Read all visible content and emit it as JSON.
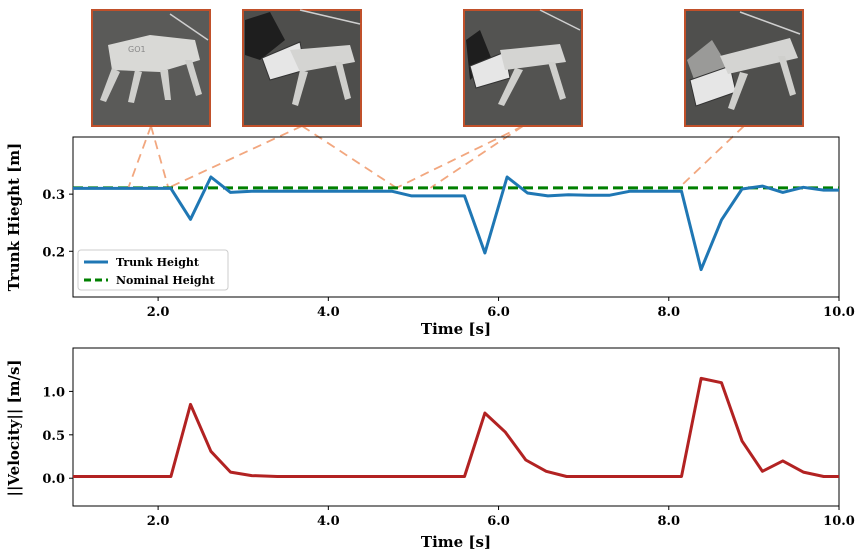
{
  "chart_data": [
    {
      "type": "line",
      "xlabel": "Time [s]",
      "ylabel": "Trunk Hieght [m]",
      "xlim": [
        1.0,
        10.0
      ],
      "ylim": [
        0.12,
        0.4
      ],
      "xticks": [
        "2.0",
        "4.0",
        "6.0",
        "8.0",
        "10.0"
      ],
      "yticks": [
        "0.2",
        "0.3"
      ],
      "legend_position": "lower-left",
      "series": [
        {
          "name": "Trunk Height",
          "color": "#1f77b4",
          "style": "solid",
          "x": [
            1.0,
            2.15,
            2.38,
            2.62,
            2.85,
            3.1,
            4.0,
            4.75,
            4.98,
            5.6,
            5.84,
            6.1,
            6.34,
            6.58,
            6.82,
            7.06,
            7.3,
            7.54,
            7.78,
            8.15,
            8.38,
            8.62,
            8.86,
            9.1,
            9.34,
            9.58,
            9.82,
            10.0
          ],
          "y": [
            0.31,
            0.31,
            0.256,
            0.33,
            0.303,
            0.305,
            0.305,
            0.305,
            0.297,
            0.297,
            0.197,
            0.33,
            0.302,
            0.297,
            0.299,
            0.298,
            0.298,
            0.305,
            0.305,
            0.305,
            0.168,
            0.255,
            0.309,
            0.314,
            0.303,
            0.312,
            0.307,
            0.307
          ]
        },
        {
          "name": "Nominal Height",
          "color": "#008000",
          "style": "dashed",
          "x": [
            1.0,
            10.0
          ],
          "y": [
            0.311,
            0.311
          ]
        }
      ]
    },
    {
      "type": "line",
      "xlabel": "Time [s]",
      "ylabel": "||Velocity|| [m/s]",
      "xlim": [
        1.0,
        10.0
      ],
      "ylim": [
        -0.32,
        1.5
      ],
      "xticks": [
        "2.0",
        "4.0",
        "6.0",
        "8.0",
        "10.0"
      ],
      "yticks": [
        "0.0",
        "0.5",
        "1.0"
      ],
      "series": [
        {
          "color": "#b22222",
          "x": [
            1.0,
            2.15,
            2.38,
            2.62,
            2.85,
            3.1,
            3.4,
            4.0,
            5.0,
            5.6,
            5.84,
            6.08,
            6.32,
            6.56,
            6.8,
            7.1,
            8.15,
            8.38,
            8.62,
            8.86,
            9.1,
            9.34,
            9.58,
            9.82,
            10.0
          ],
          "y": [
            0.02,
            0.02,
            0.85,
            0.31,
            0.07,
            0.03,
            0.02,
            0.02,
            0.02,
            0.02,
            0.75,
            0.53,
            0.21,
            0.08,
            0.02,
            0.02,
            0.02,
            1.15,
            1.1,
            0.43,
            0.08,
            0.2,
            0.07,
            0.02,
            0.02
          ]
        }
      ]
    }
  ],
  "photos": [
    {
      "label": "robot-standing"
    },
    {
      "label": "foot-push-1"
    },
    {
      "label": "foot-push-2"
    },
    {
      "label": "foot-push-3"
    }
  ]
}
